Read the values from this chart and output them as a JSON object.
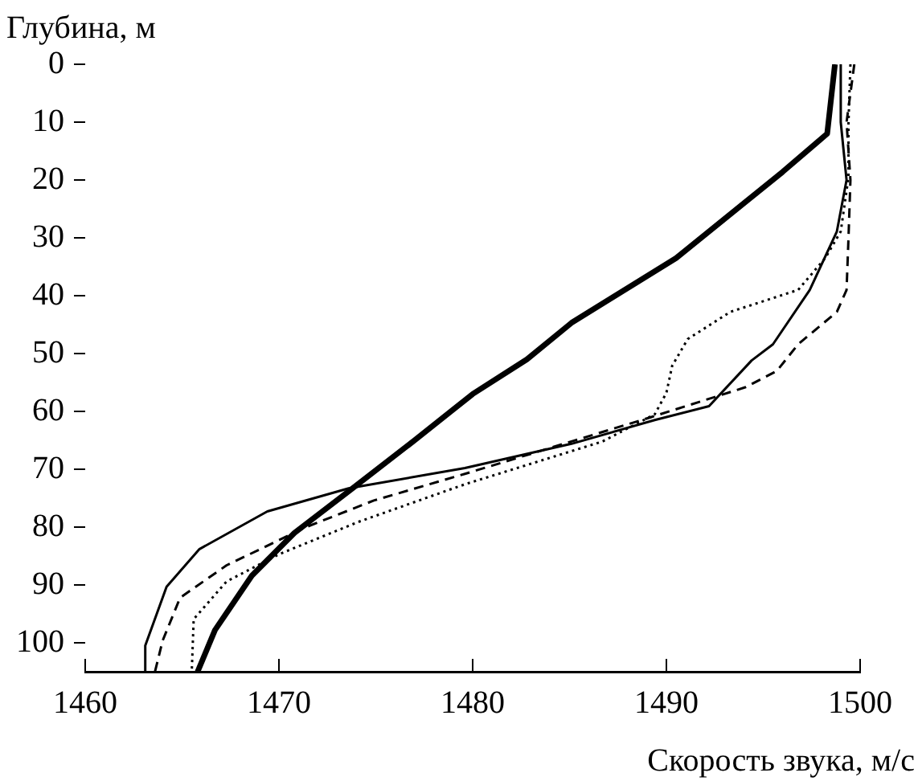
{
  "chart_data": {
    "type": "line",
    "xlabel": "Скорость звука, м/с",
    "ylabel": "Глубина, м",
    "xlim": [
      1460,
      1500
    ],
    "xticks": [
      1460,
      1470,
      1480,
      1490,
      1500
    ],
    "ylim": [
      105,
      0
    ],
    "yticks": [
      0,
      10,
      20,
      30,
      40,
      50,
      60,
      70,
      80,
      90,
      100
    ],
    "grid": false,
    "legend": false,
    "marker": "none",
    "series": [
      {
        "color": "#000000",
        "line_style": "solid",
        "x": [
          1498.7,
          1498.3,
          1496,
          1490.5,
          1485.1,
          1482.8,
          1480,
          1477,
          1473.8,
          1470.8,
          1468.6,
          1466.7,
          1465.8
        ],
        "values": [
          0,
          12,
          18.6,
          33.5,
          44.7,
          51,
          57,
          65,
          73.3,
          81,
          88.4,
          97.8,
          105
        ]
      },
      {
        "color": "#000000",
        "line_style": "solid",
        "x": [
          1499,
          1499,
          1499.3,
          1498.8,
          1497.4,
          1495.5,
          1494.4,
          1492.2,
          1489.4,
          1485.1,
          1479.6,
          1473.6,
          1469.4,
          1465.9,
          1464.2,
          1463.1,
          1463.1
        ],
        "values": [
          0,
          10,
          20,
          28.9,
          39,
          48.4,
          51.2,
          59.1,
          61.5,
          65.6,
          69.8,
          73.3,
          77.3,
          83.8,
          90.3,
          100.5,
          105
        ]
      },
      {
        "color": "#000000",
        "line_style": "dashed",
        "x": [
          1499.7,
          1499.3,
          1499.5,
          1499.4,
          1499.3,
          1498.8,
          1496.8,
          1495.7,
          1494.1,
          1492.7,
          1489.2,
          1485.1,
          1479.6,
          1474.9,
          1471.4,
          1467.3,
          1464.9,
          1464,
          1463.6
        ],
        "values": [
          0,
          10,
          20,
          30,
          39,
          42.8,
          48.4,
          53,
          55.8,
          57.3,
          61,
          65.2,
          70.8,
          75.4,
          80,
          86.6,
          92.2,
          99.6,
          105
        ]
      },
      {
        "color": "#000000",
        "line_style": "dotted",
        "x": [
          1499.5,
          1499.4,
          1499.4,
          1499,
          1498.2,
          1496.8,
          1493.3,
          1491.1,
          1490.3,
          1490,
          1489.4,
          1486.7,
          1479.6,
          1474.1,
          1470,
          1467.3,
          1465.6,
          1465.5
        ],
        "values": [
          0,
          10,
          19.5,
          28.9,
          33.5,
          39,
          42.8,
          47.5,
          52.1,
          56.8,
          60.5,
          65.2,
          72.6,
          79.1,
          84.7,
          89.4,
          95.9,
          105
        ]
      }
    ]
  }
}
